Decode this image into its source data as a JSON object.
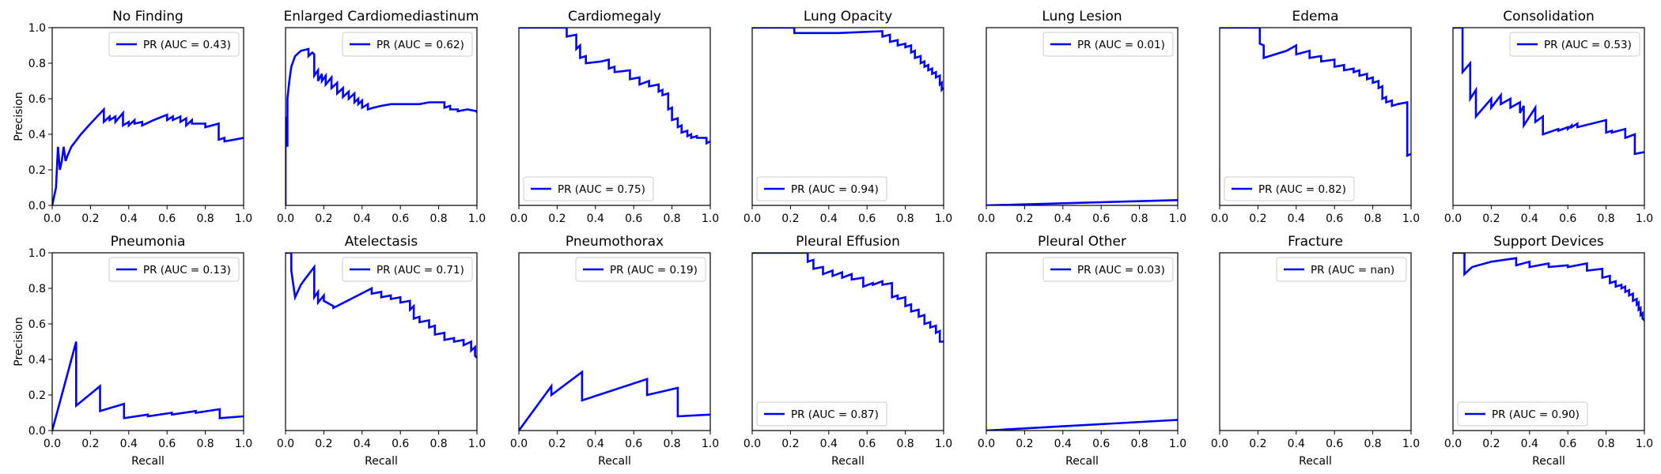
{
  "colors": {
    "series": "#0000ff",
    "axes": "#000000",
    "legend_border": "#cccccc",
    "background": "#ffffff"
  },
  "axis_text": {
    "xlabel": "Recall",
    "ylabel": "Precision"
  },
  "chart_data": [
    {
      "type": "line",
      "title": "No Finding",
      "xlim": [
        0,
        1
      ],
      "ylim": [
        0,
        1
      ],
      "xticks": [
        "0.0",
        "0.2",
        "0.4",
        "0.6",
        "0.8",
        "1.0"
      ],
      "yticks": [
        "0.0",
        "0.2",
        "0.4",
        "0.6",
        "0.8",
        "1.0"
      ],
      "legend_text": "PR (AUC = 0.43)",
      "legend_loc": "upper right",
      "x": [
        0.0,
        0.0,
        0.02,
        0.03,
        0.04,
        0.05,
        0.06,
        0.07,
        0.08,
        0.1,
        0.15,
        0.2,
        0.27,
        0.27,
        0.3,
        0.3,
        0.33,
        0.33,
        0.37,
        0.37,
        0.4,
        0.4,
        0.43,
        0.43,
        0.47,
        0.47,
        0.53,
        0.6,
        0.6,
        0.63,
        0.63,
        0.67,
        0.67,
        0.7,
        0.7,
        0.73,
        0.73,
        0.8,
        0.8,
        0.87,
        0.87,
        0.9,
        0.9,
        0.95,
        1.0
      ],
      "y": [
        0.0,
        0.0,
        0.1,
        0.33,
        0.2,
        0.25,
        0.33,
        0.25,
        0.28,
        0.33,
        0.4,
        0.46,
        0.54,
        0.47,
        0.5,
        0.48,
        0.5,
        0.47,
        0.52,
        0.45,
        0.47,
        0.45,
        0.48,
        0.46,
        0.47,
        0.45,
        0.48,
        0.51,
        0.48,
        0.5,
        0.48,
        0.5,
        0.47,
        0.49,
        0.45,
        0.48,
        0.46,
        0.46,
        0.44,
        0.46,
        0.37,
        0.38,
        0.36,
        0.37,
        0.38
      ]
    },
    {
      "type": "line",
      "title": "Enlarged Cardiomediastinum",
      "xlim": [
        0,
        1
      ],
      "ylim": [
        0,
        1
      ],
      "xticks": [
        "0.0",
        "0.2",
        "0.4",
        "0.6",
        "0.8",
        "1.0"
      ],
      "yticks": [],
      "legend_text": "PR (AUC = 0.62)",
      "legend_loc": "upper right",
      "x": [
        0.0,
        0.0,
        0.01,
        0.01,
        0.02,
        0.03,
        0.05,
        0.08,
        0.12,
        0.12,
        0.14,
        0.15,
        0.15,
        0.17,
        0.17,
        0.19,
        0.19,
        0.21,
        0.21,
        0.24,
        0.24,
        0.27,
        0.27,
        0.3,
        0.3,
        0.33,
        0.33,
        0.36,
        0.36,
        0.38,
        0.38,
        0.4,
        0.4,
        0.43,
        0.43,
        0.46,
        0.5,
        0.55,
        0.6,
        0.65,
        0.7,
        0.75,
        0.8,
        0.83,
        0.83,
        0.86,
        0.86,
        0.9,
        0.9,
        0.95,
        1.0,
        1.0
      ],
      "y": [
        0.0,
        0.5,
        0.33,
        0.6,
        0.7,
        0.78,
        0.84,
        0.87,
        0.88,
        0.84,
        0.86,
        0.85,
        0.73,
        0.76,
        0.7,
        0.74,
        0.7,
        0.73,
        0.68,
        0.72,
        0.66,
        0.69,
        0.63,
        0.66,
        0.61,
        0.64,
        0.6,
        0.63,
        0.58,
        0.6,
        0.57,
        0.59,
        0.55,
        0.57,
        0.54,
        0.55,
        0.56,
        0.57,
        0.57,
        0.57,
        0.57,
        0.58,
        0.58,
        0.58,
        0.55,
        0.56,
        0.54,
        0.54,
        0.53,
        0.54,
        0.53,
        0.52
      ]
    },
    {
      "type": "line",
      "title": "Cardiomegaly",
      "xlim": [
        0,
        1
      ],
      "ylim": [
        0,
        1
      ],
      "xticks": [
        "0.0",
        "0.2",
        "0.4",
        "0.6",
        "0.8",
        "1.0"
      ],
      "yticks": [],
      "legend_text": "PR (AUC = 0.75)",
      "legend_loc": "lower left",
      "x": [
        0.0,
        0.25,
        0.25,
        0.3,
        0.3,
        0.32,
        0.32,
        0.35,
        0.35,
        0.43,
        0.47,
        0.47,
        0.5,
        0.5,
        0.58,
        0.58,
        0.63,
        0.63,
        0.68,
        0.68,
        0.73,
        0.73,
        0.75,
        0.75,
        0.78,
        0.78,
        0.8,
        0.8,
        0.83,
        0.83,
        0.85,
        0.85,
        0.88,
        0.88,
        0.9,
        0.9,
        0.93,
        0.93,
        0.98,
        0.98,
        1.0
      ],
      "y": [
        1.0,
        1.0,
        0.95,
        0.96,
        0.88,
        0.9,
        0.83,
        0.84,
        0.8,
        0.81,
        0.82,
        0.77,
        0.78,
        0.75,
        0.76,
        0.71,
        0.72,
        0.68,
        0.7,
        0.67,
        0.68,
        0.64,
        0.65,
        0.62,
        0.63,
        0.54,
        0.55,
        0.48,
        0.49,
        0.44,
        0.45,
        0.41,
        0.42,
        0.39,
        0.4,
        0.38,
        0.39,
        0.38,
        0.38,
        0.35,
        0.36
      ]
    },
    {
      "type": "line",
      "title": "Lung Opacity",
      "xlim": [
        0,
        1
      ],
      "ylim": [
        0,
        1
      ],
      "xticks": [
        "0.0",
        "0.2",
        "0.4",
        "0.6",
        "0.8",
        "1.0"
      ],
      "yticks": [],
      "legend_text": "PR (AUC = 0.94)",
      "legend_loc": "lower left",
      "x": [
        0.0,
        0.22,
        0.22,
        0.45,
        0.68,
        0.68,
        0.72,
        0.72,
        0.76,
        0.76,
        0.8,
        0.8,
        0.83,
        0.83,
        0.85,
        0.85,
        0.88,
        0.88,
        0.9,
        0.9,
        0.92,
        0.92,
        0.94,
        0.94,
        0.96,
        0.96,
        0.98,
        0.98,
        0.99,
        0.99,
        1.0
      ],
      "y": [
        1.0,
        1.0,
        0.97,
        0.97,
        0.98,
        0.95,
        0.96,
        0.92,
        0.93,
        0.9,
        0.91,
        0.89,
        0.9,
        0.86,
        0.87,
        0.83,
        0.84,
        0.8,
        0.81,
        0.78,
        0.79,
        0.76,
        0.77,
        0.74,
        0.75,
        0.72,
        0.73,
        0.68,
        0.69,
        0.65,
        0.66
      ]
    },
    {
      "type": "line",
      "title": "Lung Lesion",
      "xlim": [
        0,
        1
      ],
      "ylim": [
        0,
        1
      ],
      "xticks": [
        "0.0",
        "0.2",
        "0.4",
        "0.6",
        "0.8",
        "1.0"
      ],
      "yticks": [],
      "legend_text": "PR (AUC = 0.01)",
      "legend_loc": "upper right",
      "x": [
        0.0,
        1.0
      ],
      "y": [
        0.0,
        0.03
      ]
    },
    {
      "type": "line",
      "title": "Edema",
      "xlim": [
        0,
        1
      ],
      "ylim": [
        0,
        1
      ],
      "xticks": [
        "0.0",
        "0.2",
        "0.4",
        "0.6",
        "0.8",
        "1.0"
      ],
      "yticks": [],
      "legend_text": "PR (AUC = 0.82)",
      "legend_loc": "lower left",
      "x": [
        0.0,
        0.21,
        0.21,
        0.23,
        0.23,
        0.35,
        0.4,
        0.4,
        0.47,
        0.47,
        0.53,
        0.53,
        0.6,
        0.6,
        0.65,
        0.65,
        0.7,
        0.7,
        0.73,
        0.73,
        0.77,
        0.77,
        0.8,
        0.8,
        0.83,
        0.83,
        0.85,
        0.85,
        0.87,
        0.87,
        0.9,
        0.9,
        0.93,
        0.98,
        0.98,
        1.0
      ],
      "y": [
        1.0,
        1.0,
        0.91,
        0.9,
        0.83,
        0.87,
        0.9,
        0.85,
        0.87,
        0.83,
        0.84,
        0.81,
        0.82,
        0.78,
        0.79,
        0.76,
        0.77,
        0.75,
        0.76,
        0.73,
        0.74,
        0.71,
        0.72,
        0.69,
        0.7,
        0.66,
        0.67,
        0.6,
        0.61,
        0.58,
        0.59,
        0.56,
        0.57,
        0.58,
        0.28,
        0.29
      ]
    },
    {
      "type": "line",
      "title": "Consolidation",
      "xlim": [
        0,
        1
      ],
      "ylim": [
        0,
        1
      ],
      "xticks": [
        "0.0",
        "0.2",
        "0.4",
        "0.6",
        "0.8",
        "1.0"
      ],
      "yticks": [],
      "legend_text": "PR (AUC = 0.53)",
      "legend_loc": "upper right",
      "x": [
        0.0,
        0.05,
        0.05,
        0.09,
        0.09,
        0.12,
        0.12,
        0.2,
        0.2,
        0.25,
        0.25,
        0.3,
        0.3,
        0.35,
        0.35,
        0.37,
        0.37,
        0.43,
        0.43,
        0.47,
        0.47,
        0.55,
        0.55,
        0.6,
        0.6,
        0.62,
        0.62,
        0.65,
        0.65,
        0.8,
        0.8,
        0.83,
        0.83,
        0.9,
        0.9,
        0.95,
        0.95,
        1.0
      ],
      "y": [
        1.0,
        1.0,
        0.75,
        0.8,
        0.6,
        0.65,
        0.5,
        0.6,
        0.55,
        0.62,
        0.57,
        0.6,
        0.55,
        0.58,
        0.52,
        0.56,
        0.45,
        0.55,
        0.47,
        0.5,
        0.4,
        0.43,
        0.42,
        0.44,
        0.43,
        0.45,
        0.44,
        0.46,
        0.44,
        0.48,
        0.41,
        0.42,
        0.41,
        0.43,
        0.38,
        0.4,
        0.29,
        0.3
      ]
    },
    {
      "type": "line",
      "title": "Pneumonia",
      "xlim": [
        0,
        1
      ],
      "ylim": [
        0,
        1
      ],
      "xticks": [
        "0.0",
        "0.2",
        "0.4",
        "0.6",
        "0.8",
        "1.0"
      ],
      "yticks": [
        "0.0",
        "0.2",
        "0.4",
        "0.6",
        "0.8",
        "1.0"
      ],
      "legend_text": "PR (AUC = 0.13)",
      "legend_loc": "upper right",
      "x": [
        0.0,
        0.125,
        0.125,
        0.25,
        0.25,
        0.375,
        0.375,
        0.5,
        0.5,
        0.625,
        0.625,
        0.75,
        0.75,
        0.875,
        0.875,
        1.0
      ],
      "y": [
        0.0,
        0.5,
        0.14,
        0.25,
        0.11,
        0.15,
        0.07,
        0.09,
        0.08,
        0.1,
        0.09,
        0.11,
        0.1,
        0.12,
        0.07,
        0.08
      ]
    },
    {
      "type": "line",
      "title": "Atelectasis",
      "xlim": [
        0,
        1
      ],
      "ylim": [
        0,
        1
      ],
      "xticks": [
        "0.0",
        "0.2",
        "0.4",
        "0.6",
        "0.8",
        "1.0"
      ],
      "yticks": [],
      "legend_text": "PR (AUC = 0.71)",
      "legend_loc": "upper right",
      "x": [
        0.0,
        0.03,
        0.03,
        0.05,
        0.08,
        0.1,
        0.15,
        0.15,
        0.17,
        0.17,
        0.2,
        0.2,
        0.25,
        0.25,
        0.45,
        0.45,
        0.5,
        0.5,
        0.55,
        0.55,
        0.6,
        0.6,
        0.65,
        0.65,
        0.67,
        0.67,
        0.7,
        0.7,
        0.75,
        0.75,
        0.78,
        0.78,
        0.83,
        0.83,
        0.88,
        0.88,
        0.93,
        0.93,
        0.97,
        0.97,
        0.99,
        0.99,
        1.0
      ],
      "y": [
        1.0,
        1.0,
        0.9,
        0.75,
        0.82,
        0.85,
        0.92,
        0.75,
        0.78,
        0.72,
        0.76,
        0.73,
        0.7,
        0.69,
        0.8,
        0.77,
        0.78,
        0.75,
        0.76,
        0.74,
        0.75,
        0.72,
        0.73,
        0.68,
        0.7,
        0.63,
        0.64,
        0.61,
        0.62,
        0.58,
        0.59,
        0.54,
        0.55,
        0.51,
        0.52,
        0.5,
        0.51,
        0.48,
        0.5,
        0.45,
        0.47,
        0.42,
        0.41
      ]
    },
    {
      "type": "line",
      "title": "Pneumothorax",
      "xlim": [
        0,
        1
      ],
      "ylim": [
        0,
        1
      ],
      "xticks": [
        "0.0",
        "0.2",
        "0.4",
        "0.6",
        "0.8",
        "1.0"
      ],
      "yticks": [],
      "legend_text": "PR (AUC = 0.19)",
      "legend_loc": "upper right",
      "x": [
        0.0,
        0.17,
        0.17,
        0.33,
        0.33,
        0.67,
        0.67,
        0.83,
        0.83,
        1.0
      ],
      "y": [
        0.0,
        0.25,
        0.2,
        0.33,
        0.17,
        0.29,
        0.2,
        0.24,
        0.08,
        0.09
      ]
    },
    {
      "type": "line",
      "title": "Pleural Effusion",
      "xlim": [
        0,
        1
      ],
      "ylim": [
        0,
        1
      ],
      "xticks": [
        "0.0",
        "0.2",
        "0.4",
        "0.6",
        "0.8",
        "1.0"
      ],
      "yticks": [],
      "legend_text": "PR (AUC = 0.87)",
      "legend_loc": "lower left",
      "x": [
        0.0,
        0.29,
        0.29,
        0.32,
        0.32,
        0.37,
        0.37,
        0.42,
        0.42,
        0.47,
        0.47,
        0.52,
        0.52,
        0.58,
        0.58,
        0.63,
        0.63,
        0.68,
        0.68,
        0.73,
        0.73,
        0.76,
        0.76,
        0.8,
        0.8,
        0.83,
        0.83,
        0.87,
        0.87,
        0.9,
        0.9,
        0.93,
        0.93,
        0.96,
        0.96,
        0.98,
        0.98,
        1.0
      ],
      "y": [
        1.0,
        1.0,
        0.95,
        0.96,
        0.91,
        0.92,
        0.88,
        0.9,
        0.87,
        0.89,
        0.86,
        0.88,
        0.85,
        0.86,
        0.81,
        0.83,
        0.82,
        0.84,
        0.82,
        0.83,
        0.75,
        0.76,
        0.74,
        0.75,
        0.7,
        0.71,
        0.67,
        0.68,
        0.64,
        0.65,
        0.6,
        0.61,
        0.58,
        0.59,
        0.55,
        0.56,
        0.5,
        0.5
      ]
    },
    {
      "type": "line",
      "title": "Pleural Other",
      "xlim": [
        0,
        1
      ],
      "ylim": [
        0,
        1
      ],
      "xticks": [
        "0.0",
        "0.2",
        "0.4",
        "0.6",
        "0.8",
        "1.0"
      ],
      "yticks": [],
      "legend_text": "PR (AUC = 0.03)",
      "legend_loc": "upper right",
      "x": [
        0.0,
        1.0
      ],
      "y": [
        0.0,
        0.06
      ]
    },
    {
      "type": "line",
      "title": "Fracture",
      "xlim": [
        0,
        1
      ],
      "ylim": [
        0,
        1
      ],
      "xticks": [
        "0.0",
        "0.2",
        "0.4",
        "0.6",
        "0.8",
        "1.0"
      ],
      "yticks": [],
      "legend_text": "PR (AUC = nan)",
      "legend_loc": "upper right",
      "x": [],
      "y": []
    },
    {
      "type": "line",
      "title": "Support Devices",
      "xlim": [
        0,
        1
      ],
      "ylim": [
        0,
        1
      ],
      "xticks": [
        "0.0",
        "0.2",
        "0.4",
        "0.6",
        "0.8",
        "1.0"
      ],
      "yticks": [],
      "legend_text": "PR (AUC = 0.90)",
      "legend_loc": "lower left",
      "x": [
        0.0,
        0.06,
        0.06,
        0.1,
        0.2,
        0.33,
        0.33,
        0.4,
        0.4,
        0.5,
        0.5,
        0.6,
        0.6,
        0.7,
        0.7,
        0.78,
        0.78,
        0.82,
        0.82,
        0.85,
        0.85,
        0.88,
        0.88,
        0.9,
        0.9,
        0.92,
        0.92,
        0.94,
        0.94,
        0.96,
        0.96,
        0.97,
        0.97,
        0.98,
        0.98,
        0.99,
        0.99,
        1.0
      ],
      "y": [
        1.0,
        1.0,
        0.88,
        0.92,
        0.95,
        0.97,
        0.93,
        0.95,
        0.92,
        0.94,
        0.92,
        0.93,
        0.92,
        0.94,
        0.9,
        0.91,
        0.86,
        0.87,
        0.83,
        0.84,
        0.81,
        0.82,
        0.8,
        0.81,
        0.78,
        0.79,
        0.76,
        0.77,
        0.73,
        0.74,
        0.71,
        0.72,
        0.68,
        0.69,
        0.65,
        0.66,
        0.63,
        0.62
      ]
    }
  ]
}
